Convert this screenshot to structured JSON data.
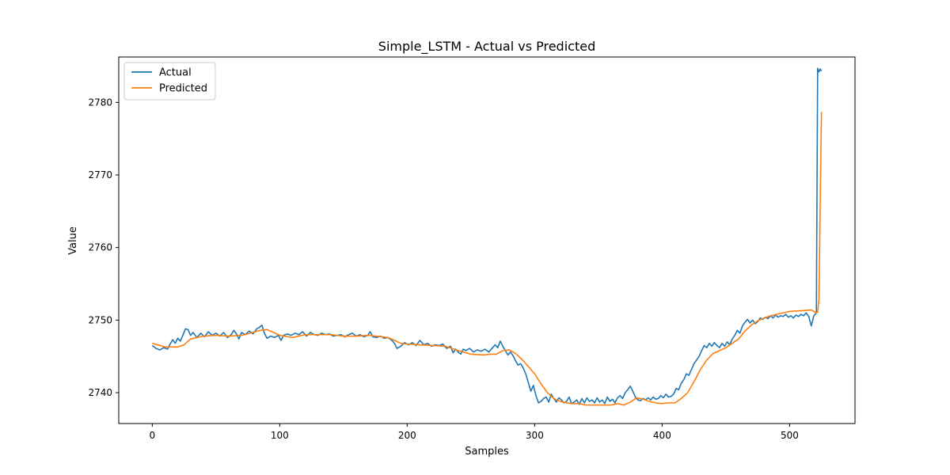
{
  "chart_data": {
    "type": "line",
    "title": "Simple_LSTM - Actual vs Predicted",
    "xlabel": "Samples",
    "ylabel": "Value",
    "xlim": [
      -26.3,
      551.3
    ],
    "ylim": [
      2735.75,
      2786.25
    ],
    "xticks": [
      0,
      100,
      200,
      300,
      400,
      500
    ],
    "yticks": [
      2740,
      2750,
      2760,
      2770,
      2780
    ],
    "grid": false,
    "legend_position": "upper-left",
    "series": [
      {
        "name": "Actual",
        "color": "#1f77b4",
        "points": [
          [
            0,
            2746.5
          ],
          [
            3,
            2746.1
          ],
          [
            6,
            2745.9
          ],
          [
            9,
            2746.2
          ],
          [
            12,
            2746.0
          ],
          [
            14,
            2746.7
          ],
          [
            16,
            2747.3
          ],
          [
            18,
            2746.8
          ],
          [
            20,
            2747.5
          ],
          [
            22,
            2747.1
          ],
          [
            24,
            2747.9
          ],
          [
            26,
            2748.8
          ],
          [
            28,
            2748.7
          ],
          [
            30,
            2747.9
          ],
          [
            32,
            2748.3
          ],
          [
            35,
            2747.6
          ],
          [
            38,
            2748.2
          ],
          [
            41,
            2747.7
          ],
          [
            44,
            2748.4
          ],
          [
            47,
            2747.9
          ],
          [
            50,
            2748.2
          ],
          [
            53,
            2747.8
          ],
          [
            56,
            2748.3
          ],
          [
            59,
            2747.6
          ],
          [
            62,
            2748.0
          ],
          [
            64,
            2748.6
          ],
          [
            66,
            2748.1
          ],
          [
            68,
            2747.4
          ],
          [
            70,
            2748.3
          ],
          [
            73,
            2748.0
          ],
          [
            76,
            2748.5
          ],
          [
            79,
            2748.1
          ],
          [
            82,
            2748.8
          ],
          [
            84,
            2749.0
          ],
          [
            86,
            2749.3
          ],
          [
            88,
            2748.2
          ],
          [
            90,
            2747.5
          ],
          [
            93,
            2747.8
          ],
          [
            96,
            2747.6
          ],
          [
            99,
            2747.9
          ],
          [
            101,
            2747.2
          ],
          [
            103,
            2747.9
          ],
          [
            106,
            2748.1
          ],
          [
            109,
            2747.9
          ],
          [
            112,
            2748.2
          ],
          [
            115,
            2748.0
          ],
          [
            118,
            2748.4
          ],
          [
            121,
            2747.8
          ],
          [
            124,
            2748.3
          ],
          [
            127,
            2748.0
          ],
          [
            130,
            2747.9
          ],
          [
            133,
            2748.2
          ],
          [
            136,
            2748.0
          ],
          [
            139,
            2748.1
          ],
          [
            142,
            2747.8
          ],
          [
            145,
            2747.9
          ],
          [
            148,
            2748.0
          ],
          [
            151,
            2747.7
          ],
          [
            154,
            2748.0
          ],
          [
            157,
            2748.2
          ],
          [
            160,
            2747.8
          ],
          [
            163,
            2748.0
          ],
          [
            166,
            2747.7
          ],
          [
            169,
            2747.9
          ],
          [
            171,
            2748.4
          ],
          [
            173,
            2747.7
          ],
          [
            176,
            2747.6
          ],
          [
            179,
            2747.8
          ],
          [
            182,
            2747.5
          ],
          [
            185,
            2747.6
          ],
          [
            188,
            2747.2
          ],
          [
            190,
            2746.8
          ],
          [
            192,
            2746.1
          ],
          [
            195,
            2746.4
          ],
          [
            198,
            2746.9
          ],
          [
            201,
            2746.6
          ],
          [
            204,
            2746.9
          ],
          [
            207,
            2746.5
          ],
          [
            210,
            2747.2
          ],
          [
            213,
            2746.6
          ],
          [
            216,
            2746.8
          ],
          [
            219,
            2746.4
          ],
          [
            222,
            2746.6
          ],
          [
            225,
            2746.5
          ],
          [
            228,
            2746.7
          ],
          [
            231,
            2746.1
          ],
          [
            234,
            2746.4
          ],
          [
            236,
            2745.5
          ],
          [
            238,
            2746.0
          ],
          [
            240,
            2745.6
          ],
          [
            242,
            2745.3
          ],
          [
            244,
            2746.0
          ],
          [
            246,
            2745.8
          ],
          [
            249,
            2746.1
          ],
          [
            252,
            2745.6
          ],
          [
            255,
            2745.9
          ],
          [
            258,
            2745.7
          ],
          [
            261,
            2746.0
          ],
          [
            264,
            2745.6
          ],
          [
            267,
            2746.2
          ],
          [
            269,
            2746.6
          ],
          [
            271,
            2746.2
          ],
          [
            273,
            2747.1
          ],
          [
            275,
            2746.4
          ],
          [
            277,
            2745.8
          ],
          [
            279,
            2745.2
          ],
          [
            281,
            2745.6
          ],
          [
            283,
            2745.1
          ],
          [
            285,
            2744.4
          ],
          [
            287,
            2743.8
          ],
          [
            289,
            2744.0
          ],
          [
            291,
            2743.4
          ],
          [
            293,
            2742.6
          ],
          [
            295,
            2741.4
          ],
          [
            297,
            2740.2
          ],
          [
            299,
            2741.0
          ],
          [
            301,
            2739.6
          ],
          [
            303,
            2738.6
          ],
          [
            305,
            2738.8
          ],
          [
            307,
            2739.2
          ],
          [
            309,
            2739.4
          ],
          [
            311,
            2738.7
          ],
          [
            313,
            2739.8
          ],
          [
            315,
            2739.2
          ],
          [
            317,
            2738.7
          ],
          [
            319,
            2739.3
          ],
          [
            321,
            2739.0
          ],
          [
            323,
            2738.6
          ],
          [
            325,
            2738.8
          ],
          [
            327,
            2739.4
          ],
          [
            329,
            2738.5
          ],
          [
            331,
            2738.7
          ],
          [
            333,
            2739.0
          ],
          [
            335,
            2738.4
          ],
          [
            337,
            2739.2
          ],
          [
            339,
            2738.6
          ],
          [
            341,
            2739.3
          ],
          [
            343,
            2738.8
          ],
          [
            345,
            2739.0
          ],
          [
            347,
            2738.6
          ],
          [
            349,
            2739.3
          ],
          [
            351,
            2738.7
          ],
          [
            353,
            2739.0
          ],
          [
            355,
            2738.5
          ],
          [
            357,
            2739.4
          ],
          [
            359,
            2738.8
          ],
          [
            361,
            2739.1
          ],
          [
            363,
            2738.6
          ],
          [
            365,
            2739.3
          ],
          [
            367,
            2739.6
          ],
          [
            369,
            2739.2
          ],
          [
            371,
            2740.0
          ],
          [
            373,
            2740.4
          ],
          [
            375,
            2740.9
          ],
          [
            377,
            2740.2
          ],
          [
            379,
            2739.4
          ],
          [
            381,
            2739.0
          ],
          [
            383,
            2738.9
          ],
          [
            385,
            2739.2
          ],
          [
            387,
            2739.0
          ],
          [
            389,
            2739.3
          ],
          [
            391,
            2739.0
          ],
          [
            393,
            2739.4
          ],
          [
            395,
            2739.1
          ],
          [
            397,
            2739.2
          ],
          [
            399,
            2739.6
          ],
          [
            401,
            2739.3
          ],
          [
            403,
            2739.8
          ],
          [
            405,
            2739.4
          ],
          [
            407,
            2739.5
          ],
          [
            409,
            2739.8
          ],
          [
            411,
            2740.6
          ],
          [
            413,
            2740.4
          ],
          [
            415,
            2741.3
          ],
          [
            417,
            2741.8
          ],
          [
            419,
            2742.6
          ],
          [
            421,
            2742.4
          ],
          [
            423,
            2743.2
          ],
          [
            425,
            2744.0
          ],
          [
            427,
            2744.5
          ],
          [
            429,
            2745.0
          ],
          [
            431,
            2745.8
          ],
          [
            433,
            2746.5
          ],
          [
            435,
            2746.2
          ],
          [
            437,
            2746.8
          ],
          [
            439,
            2746.4
          ],
          [
            441,
            2746.9
          ],
          [
            443,
            2746.5
          ],
          [
            445,
            2746.2
          ],
          [
            447,
            2746.8
          ],
          [
            449,
            2746.4
          ],
          [
            451,
            2747.0
          ],
          [
            453,
            2746.6
          ],
          [
            455,
            2747.4
          ],
          [
            457,
            2747.9
          ],
          [
            459,
            2748.6
          ],
          [
            461,
            2748.2
          ],
          [
            463,
            2749.2
          ],
          [
            465,
            2749.7
          ],
          [
            467,
            2750.1
          ],
          [
            469,
            2749.6
          ],
          [
            471,
            2750.0
          ],
          [
            473,
            2749.5
          ],
          [
            475,
            2749.8
          ],
          [
            477,
            2750.3
          ],
          [
            479,
            2750.1
          ],
          [
            481,
            2750.4
          ],
          [
            483,
            2750.2
          ],
          [
            485,
            2750.6
          ],
          [
            487,
            2750.3
          ],
          [
            489,
            2750.7
          ],
          [
            491,
            2750.4
          ],
          [
            493,
            2750.6
          ],
          [
            495,
            2750.5
          ],
          [
            497,
            2750.8
          ],
          [
            499,
            2750.4
          ],
          [
            501,
            2750.6
          ],
          [
            503,
            2750.3
          ],
          [
            505,
            2750.7
          ],
          [
            507,
            2750.5
          ],
          [
            509,
            2750.8
          ],
          [
            511,
            2750.6
          ],
          [
            513,
            2751.0
          ],
          [
            515,
            2750.5
          ],
          [
            517,
            2749.2
          ],
          [
            519,
            2750.6
          ],
          [
            521,
            2751.0
          ],
          [
            522,
            2784.7
          ],
          [
            523,
            2784.2
          ],
          [
            524,
            2784.6
          ],
          [
            525,
            2784.3
          ]
        ]
      },
      {
        "name": "Predicted",
        "color": "#ff7f0e",
        "points": [
          [
            0,
            2746.8
          ],
          [
            10,
            2746.3
          ],
          [
            20,
            2746.3
          ],
          [
            25,
            2746.6
          ],
          [
            30,
            2747.4
          ],
          [
            40,
            2747.8
          ],
          [
            50,
            2747.9
          ],
          [
            60,
            2747.8
          ],
          [
            70,
            2747.9
          ],
          [
            75,
            2748.1
          ],
          [
            85,
            2748.6
          ],
          [
            90,
            2748.7
          ],
          [
            100,
            2747.9
          ],
          [
            110,
            2747.6
          ],
          [
            120,
            2748.0
          ],
          [
            130,
            2748.0
          ],
          [
            140,
            2748.0
          ],
          [
            150,
            2747.8
          ],
          [
            160,
            2747.8
          ],
          [
            170,
            2747.9
          ],
          [
            180,
            2747.7
          ],
          [
            185,
            2747.6
          ],
          [
            190,
            2747.2
          ],
          [
            195,
            2746.8
          ],
          [
            200,
            2746.7
          ],
          [
            210,
            2746.6
          ],
          [
            220,
            2746.5
          ],
          [
            230,
            2746.4
          ],
          [
            240,
            2745.8
          ],
          [
            250,
            2745.3
          ],
          [
            260,
            2745.2
          ],
          [
            265,
            2745.3
          ],
          [
            270,
            2745.3
          ],
          [
            275,
            2745.8
          ],
          [
            280,
            2745.9
          ],
          [
            285,
            2745.4
          ],
          [
            290,
            2744.6
          ],
          [
            295,
            2743.6
          ],
          [
            300,
            2742.6
          ],
          [
            305,
            2741.2
          ],
          [
            310,
            2740.0
          ],
          [
            315,
            2739.2
          ],
          [
            320,
            2738.8
          ],
          [
            325,
            2738.6
          ],
          [
            330,
            2738.5
          ],
          [
            335,
            2738.5
          ],
          [
            340,
            2738.3
          ],
          [
            350,
            2738.3
          ],
          [
            360,
            2738.3
          ],
          [
            365,
            2738.5
          ],
          [
            370,
            2738.3
          ],
          [
            375,
            2738.7
          ],
          [
            380,
            2739.3
          ],
          [
            385,
            2739.1
          ],
          [
            390,
            2738.8
          ],
          [
            395,
            2738.6
          ],
          [
            400,
            2738.5
          ],
          [
            405,
            2738.6
          ],
          [
            410,
            2738.6
          ],
          [
            415,
            2739.2
          ],
          [
            420,
            2740.0
          ],
          [
            425,
            2741.5
          ],
          [
            430,
            2743.2
          ],
          [
            435,
            2744.5
          ],
          [
            440,
            2745.4
          ],
          [
            445,
            2745.8
          ],
          [
            450,
            2746.2
          ],
          [
            455,
            2746.8
          ],
          [
            460,
            2747.4
          ],
          [
            465,
            2748.5
          ],
          [
            470,
            2749.3
          ],
          [
            475,
            2749.9
          ],
          [
            480,
            2750.3
          ],
          [
            485,
            2750.6
          ],
          [
            490,
            2750.8
          ],
          [
            495,
            2751.0
          ],
          [
            500,
            2751.2
          ],
          [
            510,
            2751.3
          ],
          [
            517,
            2751.4
          ],
          [
            519,
            2751.2
          ],
          [
            521,
            2751.0
          ],
          [
            522,
            2751.1
          ],
          [
            523,
            2752.8
          ],
          [
            524,
            2766.0
          ],
          [
            525,
            2778.7
          ]
        ]
      }
    ]
  }
}
